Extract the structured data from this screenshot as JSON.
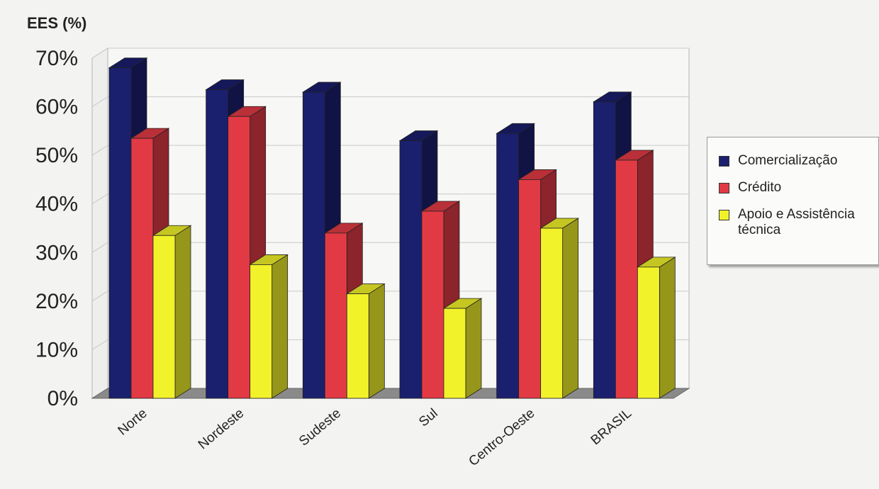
{
  "chart_data": {
    "type": "bar",
    "title": "",
    "ylabel": "EES (%)",
    "xlabel": "",
    "ylim": [
      0,
      70
    ],
    "yticks": [
      "0%",
      "10%",
      "20%",
      "30%",
      "40%",
      "50%",
      "60%",
      "70%"
    ],
    "grid": true,
    "legend_position": "right",
    "style": "3d-clustered",
    "categories": [
      "Norte",
      "Nordeste",
      "Sudeste",
      "Sul",
      "Centro-Oeste",
      "BRASIL"
    ],
    "series": [
      {
        "name": "Comercialização",
        "color": "#1a1f6e",
        "values": [
          68,
          63.5,
          63,
          53,
          54.5,
          61
        ]
      },
      {
        "name": "Crédito",
        "color": "#e23a45",
        "values": [
          53.5,
          58,
          34,
          38.5,
          45,
          49
        ]
      },
      {
        "name": "Apoio e Assistência técnica",
        "color": "#f2f22a",
        "values": [
          33.5,
          27.5,
          21.5,
          18.5,
          35,
          27
        ]
      }
    ]
  }
}
